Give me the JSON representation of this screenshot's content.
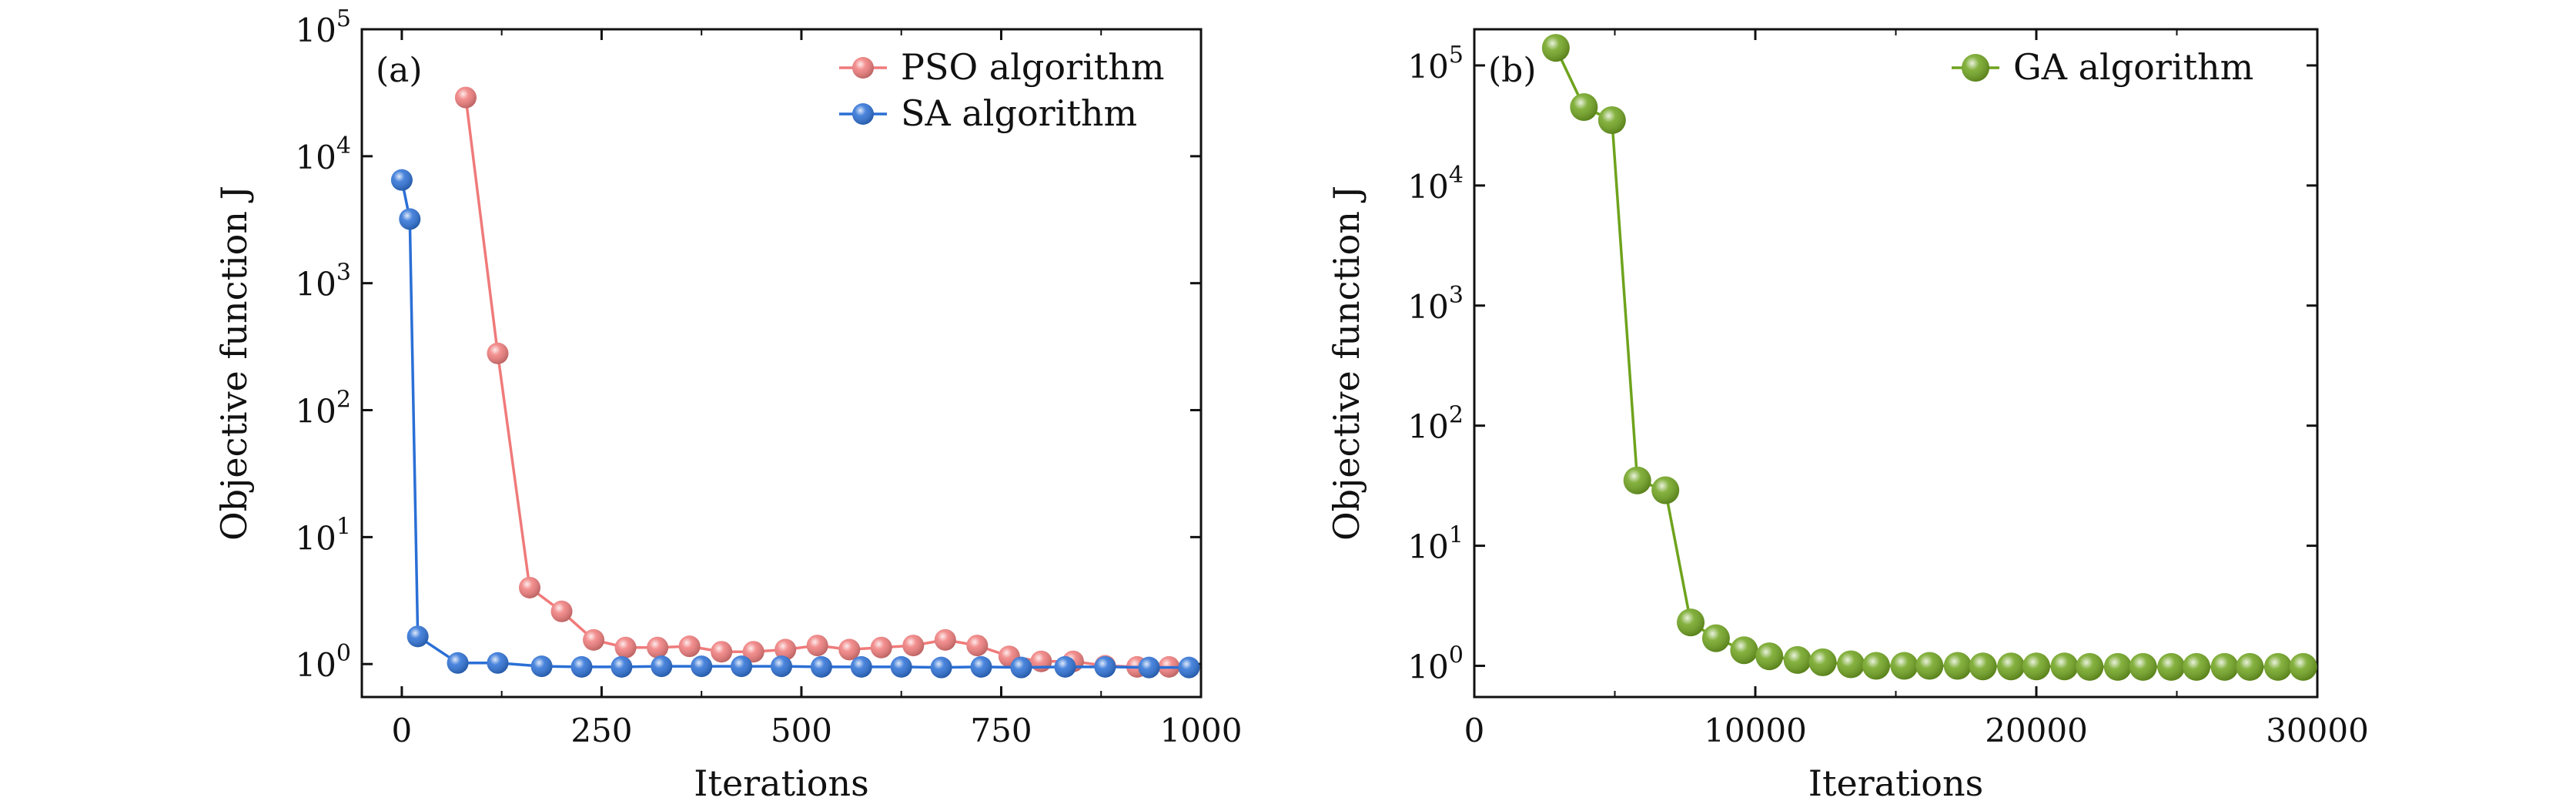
{
  "chart_data": [
    {
      "type": "line",
      "panel_label": "(a)",
      "xlabel": "Iterations",
      "ylabel": "Objective function J",
      "yscale": "log",
      "xlim": [
        -50,
        1000
      ],
      "ylim": [
        0.55,
        100000
      ],
      "xticks": [
        0,
        250,
        500,
        750,
        1000
      ],
      "xtick_labels": [
        "0",
        "250",
        "500",
        "750",
        "1000"
      ],
      "yticks": [
        1,
        10,
        100,
        1000,
        10000,
        100000
      ],
      "ytick_labels": [
        {
          "base": "10",
          "exp": "0"
        },
        {
          "base": "10",
          "exp": "1"
        },
        {
          "base": "10",
          "exp": "2"
        },
        {
          "base": "10",
          "exp": "3"
        },
        {
          "base": "10",
          "exp": "4"
        },
        {
          "base": "10",
          "exp": "5"
        }
      ],
      "legend_position": "top-right",
      "series": [
        {
          "name": "PSO algorithm",
          "color": "#f07a7a",
          "x": [
            80,
            120,
            160,
            200,
            240,
            280,
            320,
            360,
            400,
            440,
            480,
            520,
            560,
            600,
            640,
            680,
            720,
            760,
            800,
            840,
            880,
            920,
            960
          ],
          "y": [
            29000,
            280,
            4.0,
            2.6,
            1.55,
            1.35,
            1.35,
            1.38,
            1.25,
            1.25,
            1.3,
            1.4,
            1.3,
            1.35,
            1.4,
            1.55,
            1.4,
            1.15,
            1.05,
            1.05,
            0.97,
            0.95,
            0.95
          ]
        },
        {
          "name": "SA algorithm",
          "color": "#2a6fd6",
          "x": [
            0,
            10,
            20,
            70,
            120,
            175,
            225,
            275,
            325,
            375,
            425,
            475,
            525,
            575,
            625,
            675,
            725,
            775,
            830,
            880,
            935,
            985
          ],
          "y": [
            6500,
            3200,
            1.65,
            1.02,
            1.02,
            0.96,
            0.95,
            0.95,
            0.96,
            0.96,
            0.96,
            0.96,
            0.95,
            0.95,
            0.95,
            0.94,
            0.95,
            0.94,
            0.95,
            0.95,
            0.94,
            0.94
          ]
        }
      ]
    },
    {
      "type": "line",
      "panel_label": "(b)",
      "xlabel": "Iterations",
      "ylabel": "Objective function J",
      "yscale": "log",
      "xlim": [
        0,
        30000
      ],
      "ylim": [
        0.55,
        200000
      ],
      "xticks": [
        0,
        10000,
        20000,
        30000
      ],
      "xtick_labels": [
        "0",
        "10000",
        "20000",
        "30000"
      ],
      "yticks": [
        1,
        10,
        100,
        1000,
        10000,
        100000
      ],
      "ytick_labels": [
        {
          "base": "10",
          "exp": "0"
        },
        {
          "base": "10",
          "exp": "1"
        },
        {
          "base": "10",
          "exp": "2"
        },
        {
          "base": "10",
          "exp": "3"
        },
        {
          "base": "10",
          "exp": "4"
        },
        {
          "base": "10",
          "exp": "5"
        }
      ],
      "legend_position": "top-right",
      "series": [
        {
          "name": "GA algorithm",
          "color": "#6ea31c",
          "x": [
            2900,
            3900,
            4900,
            5800,
            6800,
            7700,
            8600,
            9600,
            10500,
            11500,
            12400,
            13400,
            14300,
            15300,
            16200,
            17200,
            18100,
            19100,
            20000,
            21000,
            21900,
            22900,
            23800,
            24800,
            25700,
            26700,
            27600,
            28600,
            29500
          ],
          "y": [
            140000,
            45000,
            35000,
            35,
            29,
            2.3,
            1.7,
            1.35,
            1.2,
            1.12,
            1.07,
            1.03,
            1.0,
            1.0,
            1.0,
            1.0,
            0.99,
            0.99,
            0.99,
            0.99,
            0.98,
            0.98,
            0.98,
            0.98,
            0.98,
            0.98,
            0.98,
            0.98,
            0.98
          ]
        }
      ]
    }
  ]
}
